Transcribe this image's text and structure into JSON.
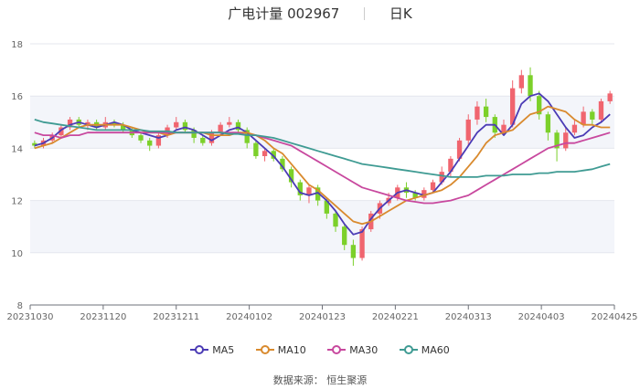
{
  "header": {
    "stock_name": "广电计量",
    "stock_code": "002967",
    "period": "日K"
  },
  "source_text": "数据来源：  恒生聚源",
  "chart_data": {
    "type": "candlestick",
    "yticks": [
      8,
      10,
      12,
      14,
      16,
      18
    ],
    "ylim": [
      8,
      18
    ],
    "xticks": [
      "20231030",
      "20231120",
      "20231211",
      "20240102",
      "20240123",
      "20240221",
      "20240313",
      "20240403",
      "20240425"
    ],
    "grid": true,
    "legend_position": "bottom",
    "colors": {
      "up": "#f0656f",
      "down": "#7cd02a"
    },
    "series": [
      {
        "name": "MA5",
        "color": "#4b3bb5",
        "values": [
          14.1,
          14.2,
          14.4,
          14.7,
          14.9,
          15.0,
          14.9,
          14.8,
          14.9,
          15.0,
          14.9,
          14.7,
          14.6,
          14.5,
          14.4,
          14.5,
          14.7,
          14.8,
          14.7,
          14.5,
          14.3,
          14.5,
          14.7,
          14.8,
          14.6,
          14.3,
          14.0,
          13.7,
          13.3,
          12.8,
          12.3,
          12.2,
          12.3,
          12.0,
          11.6,
          11.1,
          10.7,
          10.8,
          11.3,
          11.7,
          12.0,
          12.3,
          12.4,
          12.3,
          12.2,
          12.3,
          12.7,
          13.1,
          13.6,
          14.1,
          14.6,
          14.9,
          14.9,
          14.5,
          14.9,
          15.7,
          16.0,
          16.1,
          15.8,
          15.3,
          14.8,
          14.4,
          14.5,
          14.8,
          15.0,
          15.3
        ]
      },
      {
        "name": "MA10",
        "color": "#d98a2e",
        "values": [
          14.0,
          14.1,
          14.2,
          14.4,
          14.6,
          14.8,
          14.9,
          14.9,
          14.9,
          14.9,
          14.9,
          14.8,
          14.7,
          14.6,
          14.6,
          14.5,
          14.6,
          14.6,
          14.6,
          14.6,
          14.5,
          14.5,
          14.5,
          14.6,
          14.6,
          14.5,
          14.3,
          14.0,
          13.8,
          13.4,
          13.0,
          12.6,
          12.4,
          12.1,
          11.8,
          11.5,
          11.2,
          11.1,
          11.2,
          11.4,
          11.6,
          11.8,
          12.0,
          12.1,
          12.2,
          12.3,
          12.4,
          12.6,
          12.9,
          13.3,
          13.7,
          14.2,
          14.5,
          14.6,
          14.7,
          15.0,
          15.3,
          15.4,
          15.6,
          15.5,
          15.4,
          15.1,
          14.9,
          14.9,
          14.8,
          14.8
        ]
      },
      {
        "name": "MA30",
        "color": "#c8489e",
        "values": [
          14.6,
          14.5,
          14.5,
          14.4,
          14.5,
          14.5,
          14.6,
          14.6,
          14.6,
          14.6,
          14.6,
          14.6,
          14.6,
          14.6,
          14.6,
          14.6,
          14.6,
          14.6,
          14.6,
          14.6,
          14.6,
          14.6,
          14.6,
          14.6,
          14.5,
          14.5,
          14.4,
          14.3,
          14.2,
          14.1,
          13.9,
          13.7,
          13.5,
          13.3,
          13.1,
          12.9,
          12.7,
          12.5,
          12.4,
          12.3,
          12.2,
          12.1,
          12.0,
          11.95,
          11.9,
          11.9,
          11.95,
          12.0,
          12.1,
          12.2,
          12.4,
          12.6,
          12.8,
          13.0,
          13.2,
          13.4,
          13.6,
          13.8,
          14.0,
          14.1,
          14.2,
          14.2,
          14.3,
          14.4,
          14.5,
          14.6
        ]
      },
      {
        "name": "MA60",
        "color": "#3f9b93",
        "values": [
          15.1,
          15.0,
          14.95,
          14.9,
          14.85,
          14.8,
          14.75,
          14.7,
          14.7,
          14.7,
          14.7,
          14.7,
          14.7,
          14.65,
          14.65,
          14.65,
          14.6,
          14.6,
          14.6,
          14.6,
          14.6,
          14.6,
          14.55,
          14.55,
          14.5,
          14.5,
          14.45,
          14.4,
          14.3,
          14.2,
          14.1,
          14.0,
          13.9,
          13.8,
          13.7,
          13.6,
          13.5,
          13.4,
          13.35,
          13.3,
          13.25,
          13.2,
          13.15,
          13.1,
          13.05,
          13.0,
          12.95,
          12.9,
          12.9,
          12.9,
          12.9,
          12.95,
          12.95,
          12.95,
          13.0,
          13.0,
          13.0,
          13.05,
          13.05,
          13.1,
          13.1,
          13.1,
          13.15,
          13.2,
          13.3,
          13.4
        ]
      }
    ],
    "candles": [
      [
        14.2,
        14.1,
        14.3,
        14.0
      ],
      [
        14.1,
        14.3,
        14.4,
        14.0
      ],
      [
        14.3,
        14.5,
        14.6,
        14.2
      ],
      [
        14.5,
        14.8,
        14.9,
        14.4
      ],
      [
        14.8,
        15.1,
        15.2,
        14.7
      ],
      [
        15.1,
        14.9,
        15.2,
        14.8
      ],
      [
        14.9,
        15.0,
        15.1,
        14.7
      ],
      [
        15.0,
        14.8,
        15.1,
        14.7
      ],
      [
        14.8,
        15.0,
        15.2,
        14.7
      ],
      [
        15.0,
        14.9,
        15.1,
        14.8
      ],
      [
        14.9,
        14.7,
        15.0,
        14.6
      ],
      [
        14.7,
        14.5,
        14.8,
        14.4
      ],
      [
        14.5,
        14.3,
        14.6,
        14.2
      ],
      [
        14.3,
        14.1,
        14.4,
        13.9
      ],
      [
        14.1,
        14.5,
        14.6,
        14.0
      ],
      [
        14.5,
        14.8,
        14.9,
        14.4
      ],
      [
        14.8,
        15.0,
        15.2,
        14.7
      ],
      [
        15.0,
        14.7,
        15.1,
        14.6
      ],
      [
        14.7,
        14.4,
        14.8,
        14.2
      ],
      [
        14.4,
        14.2,
        14.5,
        14.1
      ],
      [
        14.2,
        14.6,
        14.7,
        14.1
      ],
      [
        14.6,
        14.9,
        15.0,
        14.5
      ],
      [
        14.9,
        15.0,
        15.2,
        14.8
      ],
      [
        15.0,
        14.7,
        15.1,
        14.6
      ],
      [
        14.7,
        14.2,
        14.8,
        14.0
      ],
      [
        14.2,
        13.7,
        14.3,
        13.6
      ],
      [
        13.7,
        13.9,
        14.0,
        13.5
      ],
      [
        13.9,
        13.6,
        14.0,
        13.5
      ],
      [
        13.6,
        13.2,
        13.7,
        13.1
      ],
      [
        13.2,
        12.7,
        13.3,
        12.5
      ],
      [
        12.7,
        12.2,
        12.8,
        12.0
      ],
      [
        12.2,
        12.5,
        12.6,
        11.9
      ],
      [
        12.5,
        12.0,
        12.6,
        11.8
      ],
      [
        12.0,
        11.5,
        12.1,
        11.3
      ],
      [
        11.5,
        11.0,
        11.6,
        10.8
      ],
      [
        11.0,
        10.3,
        11.1,
        10.1
      ],
      [
        10.3,
        9.8,
        10.5,
        9.5
      ],
      [
        9.8,
        10.9,
        11.0,
        9.7
      ],
      [
        10.9,
        11.5,
        11.6,
        10.8
      ],
      [
        11.5,
        11.9,
        12.0,
        11.3
      ],
      [
        11.9,
        12.1,
        12.3,
        11.8
      ],
      [
        12.1,
        12.5,
        12.6,
        12.0
      ],
      [
        12.5,
        12.3,
        12.7,
        12.1
      ],
      [
        12.3,
        12.1,
        12.4,
        12.0
      ],
      [
        12.1,
        12.4,
        12.5,
        12.0
      ],
      [
        12.4,
        12.7,
        12.8,
        12.3
      ],
      [
        12.7,
        13.1,
        13.3,
        12.6
      ],
      [
        13.1,
        13.6,
        13.7,
        12.9
      ],
      [
        13.6,
        14.3,
        14.4,
        13.5
      ],
      [
        14.3,
        15.1,
        15.3,
        14.1
      ],
      [
        15.1,
        15.6,
        15.8,
        14.9
      ],
      [
        15.6,
        15.2,
        15.9,
        15.0
      ],
      [
        15.2,
        14.6,
        15.3,
        14.4
      ],
      [
        14.6,
        14.9,
        15.1,
        14.5
      ],
      [
        14.9,
        16.3,
        16.6,
        14.8
      ],
      [
        16.3,
        16.8,
        17.0,
        16.1
      ],
      [
        16.8,
        16.0,
        17.1,
        15.8
      ],
      [
        16.0,
        15.3,
        16.2,
        15.1
      ],
      [
        15.3,
        14.6,
        15.4,
        14.3
      ],
      [
        14.6,
        14.0,
        14.7,
        13.5
      ],
      [
        14.0,
        14.6,
        14.8,
        13.9
      ],
      [
        14.6,
        14.9,
        15.1,
        14.5
      ],
      [
        14.9,
        15.4,
        15.6,
        14.8
      ],
      [
        15.4,
        15.1,
        15.5,
        14.9
      ],
      [
        15.1,
        15.8,
        15.9,
        15.0
      ],
      [
        15.8,
        16.1,
        16.2,
        15.7
      ]
    ]
  }
}
